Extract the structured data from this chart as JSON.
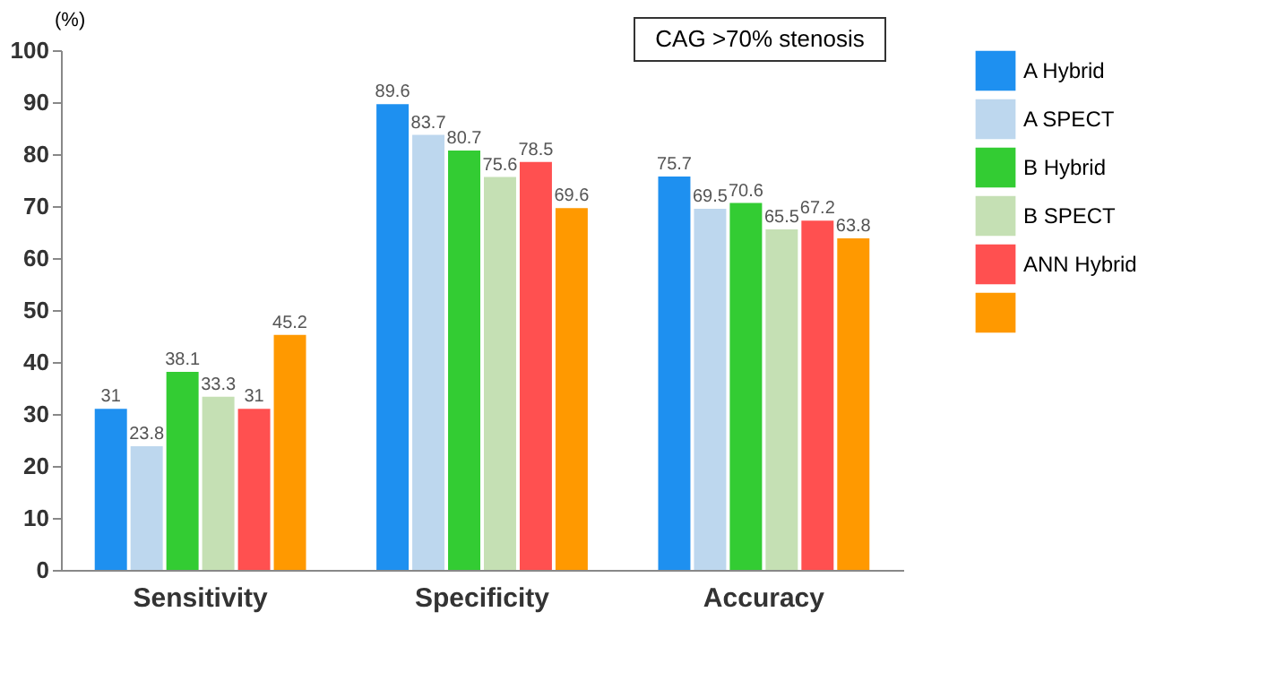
{
  "chart_data": {
    "type": "bar",
    "ylabel": "(%)",
    "categories": [
      "Sensitivity",
      "Specificity",
      "Accuracy"
    ],
    "series": [
      {
        "name": "A Hybrid",
        "color": "#1e90f0",
        "values": [
          31,
          89.6,
          75.7
        ]
      },
      {
        "name": "A SPECT",
        "color": "#bdd7ee",
        "values": [
          23.8,
          83.7,
          69.5
        ]
      },
      {
        "name": "B Hybrid",
        "color": "#33cc33",
        "values": [
          38.1,
          80.7,
          70.6
        ]
      },
      {
        "name": "B SPECT",
        "color": "#c5e0b4",
        "values": [
          33.3,
          75.6,
          65.5
        ]
      },
      {
        "name": "ANN Hybrid",
        "color": "#ff5050",
        "values": [
          31,
          78.5,
          67.2
        ]
      },
      {
        "color": "#ff9900",
        "values": [
          45.2,
          69.6,
          63.8
        ]
      }
    ],
    "ylim": [
      0,
      100
    ],
    "yticks": [
      0,
      10,
      20,
      30,
      40,
      50,
      60,
      70,
      80,
      90,
      100
    ],
    "grid": false,
    "legend": "right",
    "data_labels": true,
    "annotations": [
      "CAG >70% stenosis"
    ]
  }
}
